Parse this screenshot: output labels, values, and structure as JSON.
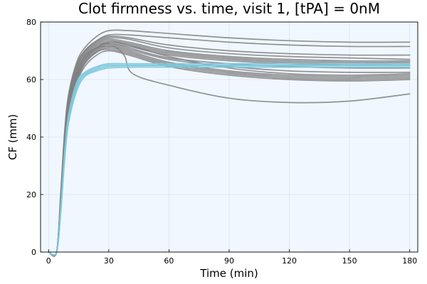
{
  "chart_data": {
    "type": "line",
    "title": "Clot firmness vs. time, visit 1, [tPA] = 0nM",
    "xlabel": "Time (min)",
    "ylabel": "CF (mm)",
    "xlim": [
      -4,
      184
    ],
    "ylim": [
      0,
      80
    ],
    "xticks": [
      0,
      30,
      60,
      90,
      120,
      150,
      180
    ],
    "yticks": [
      0,
      20,
      40,
      60,
      80
    ],
    "grid": true,
    "legend": "none",
    "colors": {
      "plot_bg": "#f0f7ff",
      "gray_series": "#808080",
      "blue_series": "#7ec8dc"
    },
    "series": [
      {
        "color": "gray",
        "x": [
          0,
          4,
          6,
          8,
          10,
          14,
          18,
          24,
          30,
          40,
          60,
          90,
          120,
          150,
          180
        ],
        "y": [
          0,
          0,
          20,
          42,
          55,
          66,
          71,
          75,
          77,
          77,
          76,
          74.5,
          73.5,
          73,
          73
        ]
      },
      {
        "color": "gray",
        "x": [
          0,
          4,
          6,
          8,
          10,
          14,
          18,
          24,
          30,
          40,
          60,
          90,
          120,
          150,
          180
        ],
        "y": [
          0,
          0,
          18,
          40,
          54,
          65,
          70,
          73.5,
          75.5,
          75.5,
          74.5,
          73,
          72,
          71.5,
          71.5
        ]
      },
      {
        "color": "gray",
        "x": [
          0,
          4,
          6,
          8,
          10,
          14,
          18,
          24,
          30,
          40,
          60,
          90,
          120,
          150,
          180
        ],
        "y": [
          0,
          0,
          19,
          41,
          54,
          65,
          70,
          73.5,
          75,
          74.5,
          72,
          70,
          69,
          68.5,
          68.5
        ]
      },
      {
        "color": "gray",
        "x": [
          0,
          4,
          6,
          8,
          10,
          14,
          18,
          24,
          30,
          40,
          60,
          90,
          120,
          150,
          180
        ],
        "y": [
          0,
          0,
          17,
          39,
          53,
          64,
          69.5,
          73,
          74.5,
          74,
          71,
          69,
          68,
          67.5,
          67
        ]
      },
      {
        "color": "gray",
        "x": [
          0,
          4,
          6,
          8,
          10,
          14,
          18,
          24,
          30,
          40,
          60,
          90,
          120,
          150,
          180
        ],
        "y": [
          0,
          0,
          18,
          40,
          53,
          64,
          69,
          72.5,
          74,
          73,
          70,
          68,
          67,
          66.5,
          66.5
        ]
      },
      {
        "color": "gray",
        "x": [
          0,
          4,
          6,
          8,
          10,
          14,
          18,
          24,
          30,
          40,
          60,
          90,
          120,
          150,
          180
        ],
        "y": [
          0,
          0,
          17,
          38,
          52,
          63,
          68.5,
          72,
          73.5,
          72.5,
          69.5,
          67.5,
          66.5,
          66,
          66
        ]
      },
      {
        "color": "gray",
        "x": [
          0,
          4,
          6,
          8,
          10,
          14,
          18,
          24,
          30,
          40,
          60,
          90,
          120,
          150,
          180
        ],
        "y": [
          0,
          0,
          16,
          37,
          51,
          62,
          68,
          71.5,
          73,
          72,
          69,
          67,
          66,
          65.5,
          65.5
        ]
      },
      {
        "color": "gray",
        "x": [
          0,
          4,
          6,
          8,
          10,
          14,
          18,
          24,
          30,
          40,
          60,
          90,
          120,
          150,
          180
        ],
        "y": [
          0,
          0,
          17,
          38,
          51,
          62,
          67.5,
          71,
          72.5,
          71.5,
          68.5,
          66.5,
          65.5,
          65,
          65
        ]
      },
      {
        "color": "gray",
        "x": [
          0,
          4,
          6,
          8,
          10,
          14,
          18,
          24,
          30,
          40,
          60,
          90,
          120,
          150,
          180
        ],
        "y": [
          0,
          0,
          16,
          36,
          50,
          61,
          67,
          71,
          72.5,
          71,
          67.5,
          65.5,
          64.5,
          64,
          64
        ]
      },
      {
        "color": "gray",
        "x": [
          0,
          4,
          6,
          8,
          10,
          14,
          18,
          24,
          30,
          40,
          60,
          90,
          120,
          150,
          180
        ],
        "y": [
          0,
          0,
          15,
          35,
          49,
          60.5,
          66.5,
          70.5,
          72,
          70.5,
          67,
          64.5,
          63,
          62.5,
          62.5
        ]
      },
      {
        "color": "gray",
        "x": [
          0,
          4,
          6,
          8,
          10,
          14,
          18,
          24,
          30,
          40,
          60,
          90,
          120,
          150,
          180
        ],
        "y": [
          0,
          0,
          16,
          36,
          50,
          61,
          67,
          71,
          73,
          72,
          68,
          64,
          62,
          61.5,
          62
        ]
      },
      {
        "color": "gray",
        "x": [
          0,
          4,
          6,
          8,
          10,
          14,
          18,
          24,
          30,
          40,
          60,
          90,
          120,
          150,
          180
        ],
        "y": [
          0,
          0,
          15,
          34,
          48,
          60,
          66,
          70,
          71.5,
          70,
          66,
          63,
          61.5,
          61,
          61.5
        ]
      },
      {
        "color": "gray",
        "x": [
          0,
          4,
          6,
          8,
          10,
          14,
          18,
          24,
          30,
          40,
          60,
          90,
          120,
          150,
          180
        ],
        "y": [
          0,
          0,
          14,
          33,
          47,
          59,
          65.5,
          69.5,
          71,
          69.5,
          65.5,
          62.5,
          61,
          60.5,
          61
        ]
      },
      {
        "color": "gray",
        "x": [
          0,
          4,
          6,
          8,
          10,
          14,
          18,
          24,
          30,
          40,
          60,
          90,
          120,
          150,
          180
        ],
        "y": [
          0,
          0,
          15,
          34,
          48,
          59.5,
          65.5,
          69.5,
          70.5,
          69,
          65,
          62,
          60.5,
          60,
          60.5
        ]
      },
      {
        "color": "gray",
        "x": [
          0,
          4,
          6,
          8,
          10,
          14,
          18,
          24,
          30,
          40,
          60,
          90,
          120,
          150,
          180
        ],
        "y": [
          0,
          0,
          14,
          33,
          47,
          58.5,
          64.5,
          68.5,
          70,
          68.5,
          64.5,
          61.5,
          60,
          59.5,
          60
        ]
      },
      {
        "color": "gray",
        "x": [
          0,
          4,
          6,
          8,
          10,
          14,
          18,
          24,
          30,
          34,
          38,
          42,
          60,
          90,
          120,
          150,
          180
        ],
        "y": [
          0,
          0,
          16,
          37,
          51,
          62.5,
          68,
          71,
          71.5,
          71,
          68,
          62,
          58,
          53.5,
          52,
          52.5,
          55
        ]
      },
      {
        "color": "blue",
        "x": [
          0,
          4,
          6,
          8,
          10,
          14,
          18,
          24,
          30,
          40,
          60,
          90,
          120,
          150,
          180
        ],
        "y": [
          0,
          0,
          15,
          35,
          48,
          59,
          62.5,
          64.5,
          65.5,
          65.5,
          65.5,
          65.5,
          65.5,
          65.5,
          65.5
        ]
      },
      {
        "color": "blue",
        "x": [
          0,
          4,
          6,
          8,
          10,
          14,
          18,
          24,
          30,
          40,
          60,
          90,
          120,
          150,
          180
        ],
        "y": [
          0,
          0,
          14,
          34,
          47,
          58,
          62,
          64,
          65,
          65,
          65,
          65,
          65,
          65,
          65
        ]
      },
      {
        "color": "blue",
        "x": [
          0,
          4,
          6,
          8,
          10,
          14,
          18,
          24,
          30,
          40,
          60,
          90,
          120,
          150,
          180
        ],
        "y": [
          0,
          0,
          14,
          33,
          46,
          57,
          61.5,
          63.5,
          64.5,
          64.8,
          64.8,
          64.8,
          64.8,
          64.8,
          64.8
        ]
      },
      {
        "color": "blue",
        "x": [
          0,
          4,
          6,
          8,
          10,
          14,
          18,
          24,
          30,
          40,
          60,
          90,
          120,
          150,
          180
        ],
        "y": [
          0,
          0,
          13,
          32,
          45,
          56,
          61,
          63,
          64,
          64.3,
          64.3,
          64.3,
          64.3,
          64.3,
          64.3
        ]
      }
    ]
  }
}
